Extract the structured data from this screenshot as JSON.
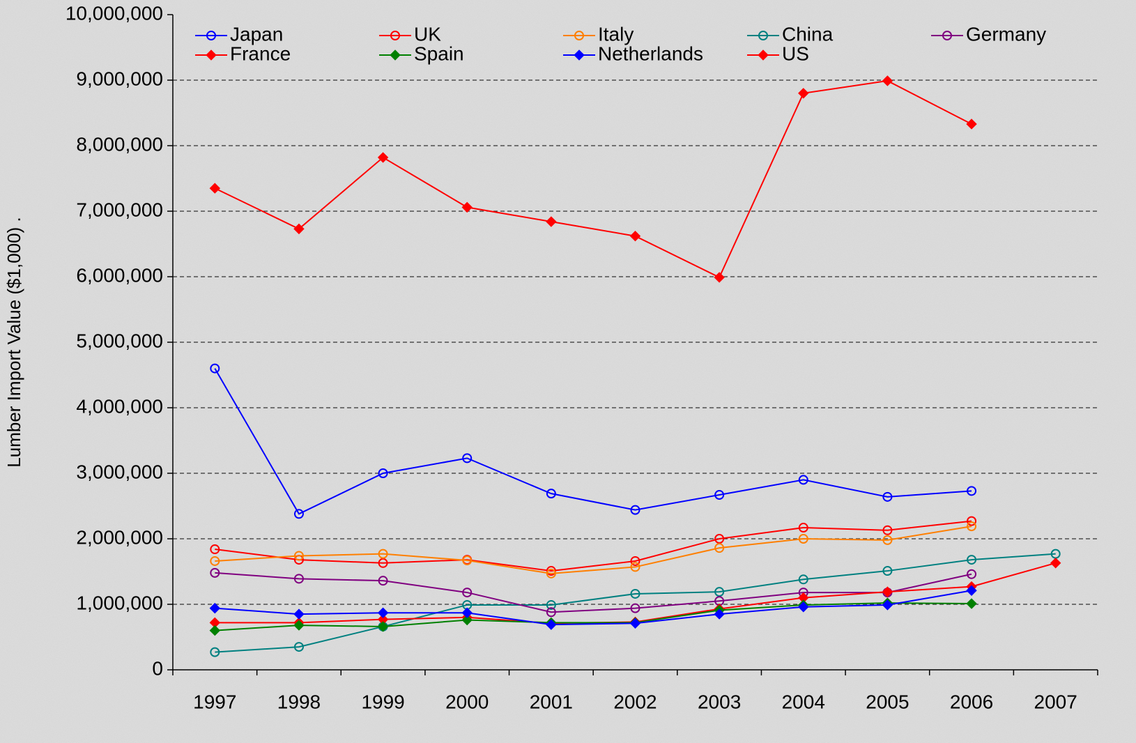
{
  "chart_data": {
    "type": "line",
    "y_label": "Lumber Import Value ($1,000)        .",
    "categories": [
      "1997",
      "1998",
      "1999",
      "2000",
      "2001",
      "2002",
      "2003",
      "2004",
      "2005",
      "2006",
      "2007"
    ],
    "ylim": [
      0,
      10000000
    ],
    "yticks": [
      0,
      {
        "value": 1000000,
        "label": "1,000,000"
      },
      {
        "value": 2000000,
        "label": "2,000,000"
      },
      {
        "value": 3000000,
        "label": "3,000,000"
      },
      {
        "value": 4000000,
        "label": "4,000,000"
      },
      {
        "value": 5000000,
        "label": "5,000,000"
      },
      {
        "value": 6000000,
        "label": "6,000,000"
      },
      {
        "value": 7000000,
        "label": "7,000,000"
      },
      {
        "value": 8000000,
        "label": "8,000,000"
      },
      {
        "value": 9000000,
        "label": "9,000,000"
      },
      {
        "value": 10000000,
        "label": "10,000,000"
      }
    ],
    "grid": true,
    "legend": "top",
    "series": [
      {
        "name": "Japan",
        "color": "#0000ff",
        "marker": "circle",
        "values": [
          4600000,
          2380000,
          3000000,
          3230000,
          2690000,
          2440000,
          2670000,
          2900000,
          2640000,
          2730000,
          null
        ]
      },
      {
        "name": "UK",
        "color": "#ff0000",
        "marker": "circle",
        "values": [
          1840000,
          1680000,
          1630000,
          1680000,
          1510000,
          1660000,
          2000000,
          2170000,
          2130000,
          2270000,
          null
        ]
      },
      {
        "name": "Italy",
        "color": "#ff7f00",
        "marker": "circle",
        "values": [
          1660000,
          1740000,
          1770000,
          1670000,
          1470000,
          1570000,
          1860000,
          2000000,
          1980000,
          2190000,
          null
        ]
      },
      {
        "name": "China",
        "color": "#008080",
        "marker": "circle",
        "values": [
          270000,
          350000,
          660000,
          990000,
          990000,
          1160000,
          1190000,
          1380000,
          1510000,
          1680000,
          1770000
        ]
      },
      {
        "name": "Germany",
        "color": "#800080",
        "marker": "circle",
        "values": [
          1480000,
          1390000,
          1360000,
          1180000,
          880000,
          940000,
          1050000,
          1180000,
          1180000,
          1460000,
          null
        ]
      },
      {
        "name": "France",
        "color": "#ff0000",
        "marker": "diamond",
        "values": [
          720000,
          720000,
          770000,
          800000,
          710000,
          730000,
          930000,
          1100000,
          1190000,
          1270000,
          1630000
        ]
      },
      {
        "name": "Spain",
        "color": "#008000",
        "marker": "diamond",
        "values": [
          600000,
          680000,
          660000,
          760000,
          720000,
          720000,
          910000,
          990000,
          1020000,
          1010000,
          null
        ]
      },
      {
        "name": "Netherlands",
        "color": "#0000ff",
        "marker": "diamond",
        "values": [
          940000,
          850000,
          870000,
          870000,
          690000,
          710000,
          850000,
          960000,
          990000,
          1210000,
          null
        ]
      },
      {
        "name": "US",
        "color": "#ff0000",
        "marker": "diamond",
        "values": [
          7350000,
          6730000,
          7820000,
          7060000,
          6840000,
          6620000,
          5990000,
          8800000,
          8990000,
          8330000,
          null
        ]
      }
    ]
  }
}
